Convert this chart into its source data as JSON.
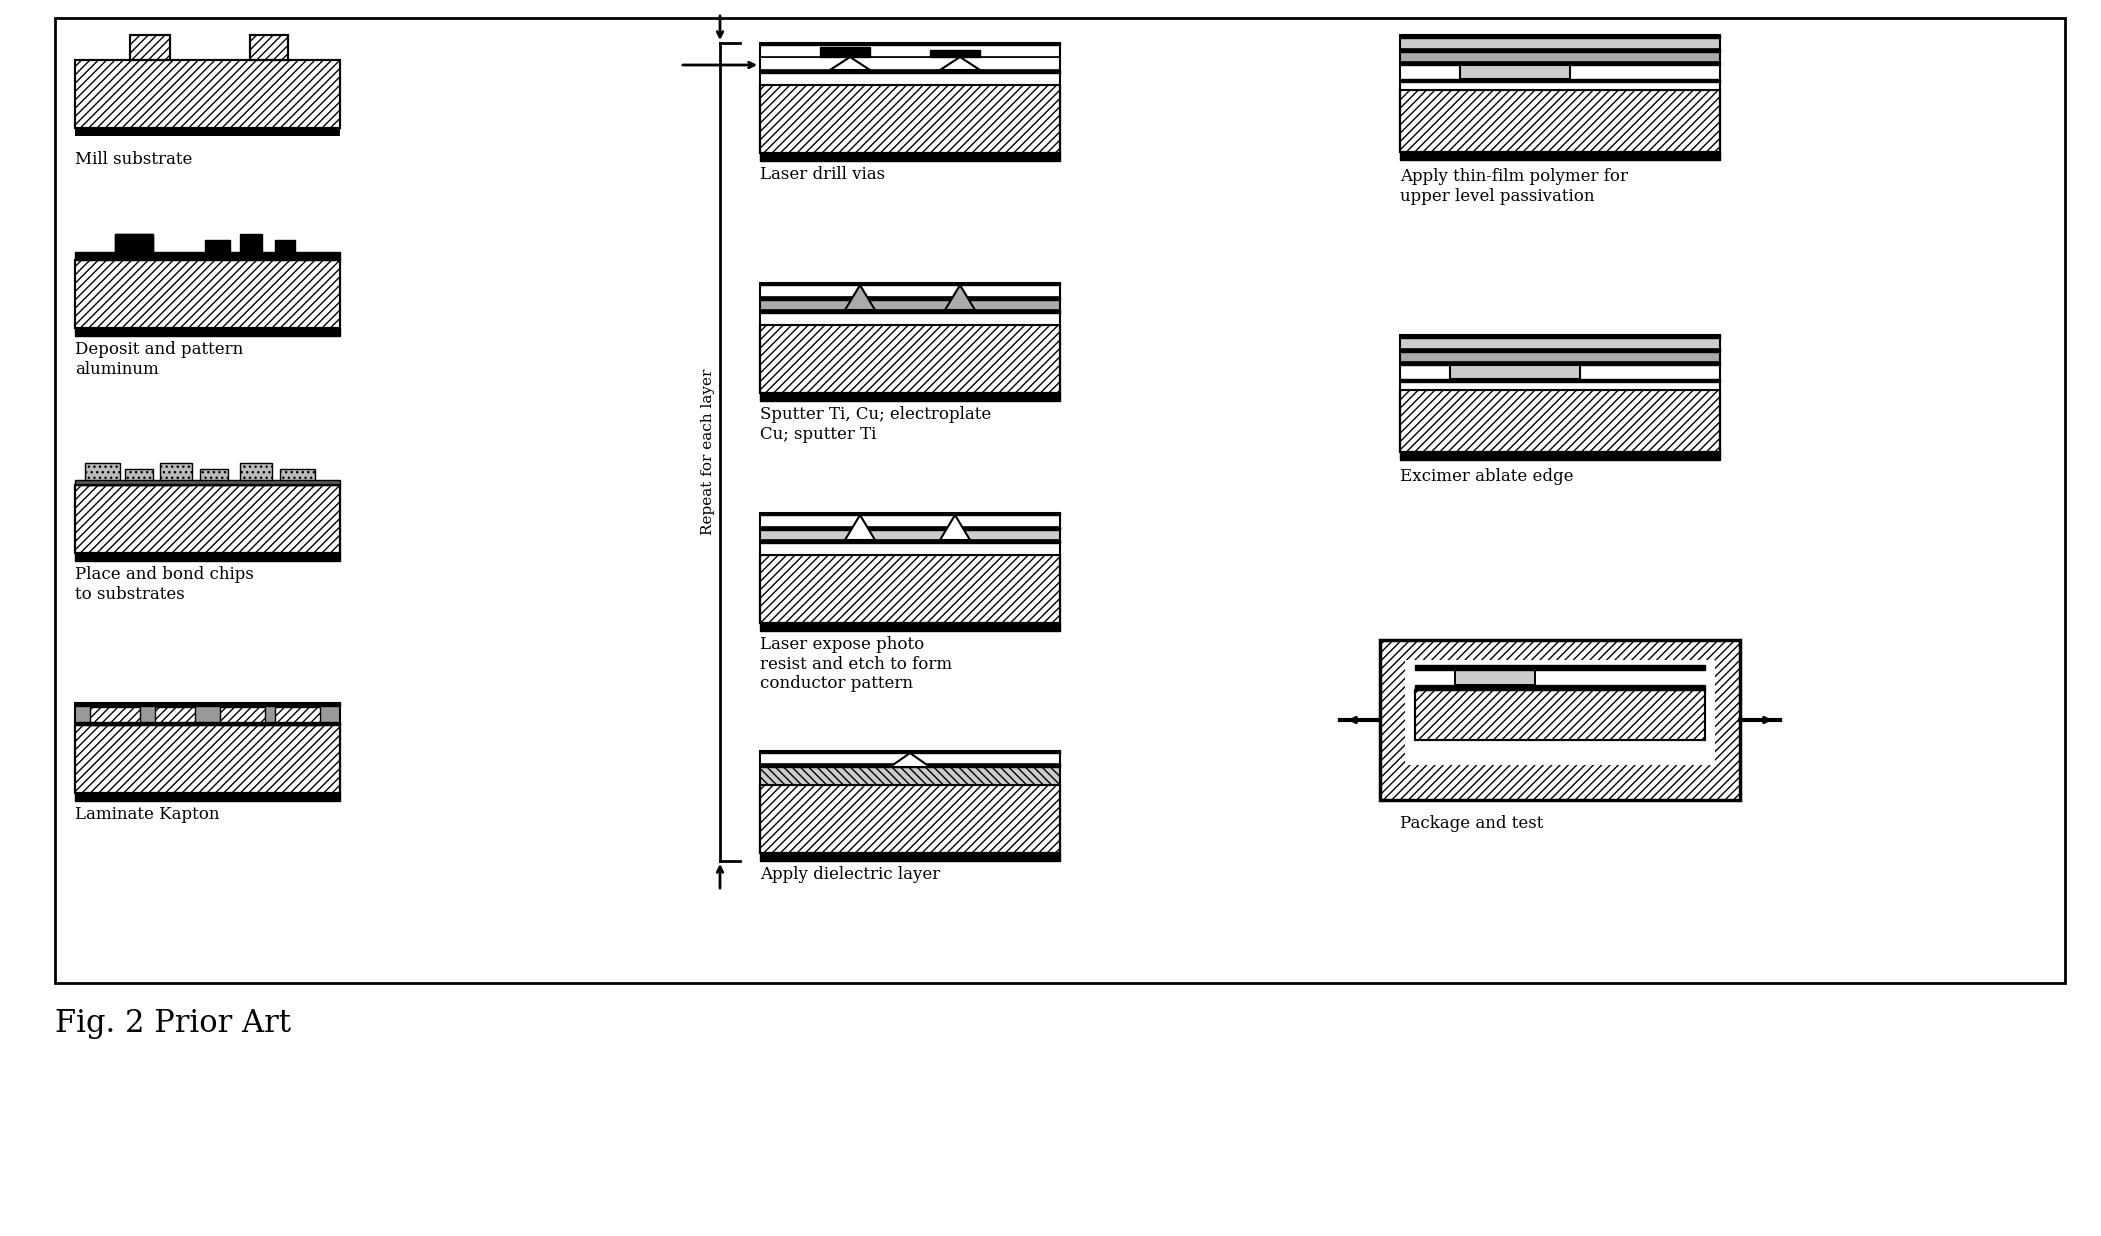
{
  "title": "Fig. 2 Prior Art",
  "bg_color": "#ffffff",
  "steps_left_labels": [
    "Mill substrate",
    "Deposit and pattern\naluminum",
    "Place and bond chips\nto substrates",
    "Laminate Kapton"
  ],
  "steps_middle_labels": [
    "Laser drill vias",
    "Sputter Ti, Cu; electroplate\nCu; sputter Ti",
    "Laser expose photo\nresist and etch to form\nconductor pattern",
    "Apply dielectric layer"
  ],
  "steps_right_labels": [
    "Apply thin-film polymer for\nupper level passivation",
    "Excimer ablate edge",
    "Package and test"
  ],
  "repeat_label": "Repeat for each layer"
}
